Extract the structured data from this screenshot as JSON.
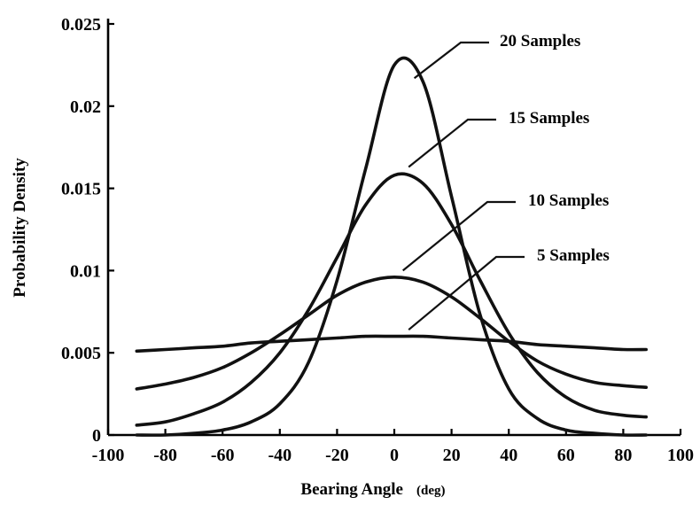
{
  "chart_data": {
    "type": "line",
    "title": "",
    "xlabel": "Bearing Angle",
    "xlabel_unit": "(deg)",
    "ylabel": "Probability Density",
    "xlim": [
      -100,
      100
    ],
    "ylim": [
      0,
      0.025
    ],
    "x_ticks": [
      -100,
      -80,
      -60,
      -40,
      -20,
      0,
      20,
      40,
      60,
      80,
      100
    ],
    "x_tick_labels": [
      "-100",
      "-80",
      "-60",
      "-40",
      "-20",
      "0",
      "20",
      "40",
      "60",
      "80",
      "100"
    ],
    "y_ticks": [
      0,
      0.005,
      0.01,
      0.015,
      0.02,
      0.025
    ],
    "y_tick_labels": [
      "0",
      "0.005",
      "0.01",
      "0.015",
      "0.02",
      "0.025"
    ],
    "grid": false,
    "legend": "none",
    "line_color": "#111111",
    "x": [
      -90,
      -80,
      -70,
      -60,
      -50,
      -40,
      -30,
      -20,
      -10,
      0,
      10,
      20,
      30,
      40,
      50,
      60,
      70,
      80,
      88
    ],
    "series": [
      {
        "name": "20 Samples",
        "values": [
          0.0,
          0.0,
          0.0001,
          0.0003,
          0.0008,
          0.0019,
          0.0044,
          0.0094,
          0.0162,
          0.0225,
          0.0215,
          0.0145,
          0.0073,
          0.0028,
          0.001,
          0.0003,
          0.0001,
          0.0,
          0.0
        ]
      },
      {
        "name": "15 Samples",
        "values": [
          0.0006,
          0.0008,
          0.0013,
          0.002,
          0.0032,
          0.005,
          0.0076,
          0.0108,
          0.014,
          0.0158,
          0.0153,
          0.0128,
          0.0094,
          0.0062,
          0.0038,
          0.0023,
          0.0015,
          0.0012,
          0.0011
        ]
      },
      {
        "name": "10 Samples",
        "values": [
          0.0028,
          0.0031,
          0.0035,
          0.0041,
          0.005,
          0.0061,
          0.0073,
          0.0085,
          0.0093,
          0.0096,
          0.0093,
          0.0084,
          0.0071,
          0.0057,
          0.0045,
          0.0037,
          0.0032,
          0.003,
          0.0029
        ]
      },
      {
        "name": "5 Samples",
        "values": [
          0.0051,
          0.0052,
          0.0053,
          0.0054,
          0.0056,
          0.0057,
          0.0058,
          0.0059,
          0.006,
          0.006,
          0.006,
          0.0059,
          0.0058,
          0.0057,
          0.0055,
          0.0054,
          0.0053,
          0.0052,
          0.0052
        ]
      }
    ],
    "annotations": [
      {
        "text": "20 Samples",
        "series": "20 Samples",
        "point_x": 7,
        "point_y": 0.0217
      },
      {
        "text": "15 Samples",
        "series": "15 Samples",
        "point_x": 5,
        "point_y": 0.0163
      },
      {
        "text": "10 Samples",
        "series": "10 Samples",
        "point_x": 3,
        "point_y": 0.01
      },
      {
        "text": "5 Samples",
        "series": "5 Samples",
        "point_x": 5,
        "point_y": 0.0064
      }
    ]
  }
}
